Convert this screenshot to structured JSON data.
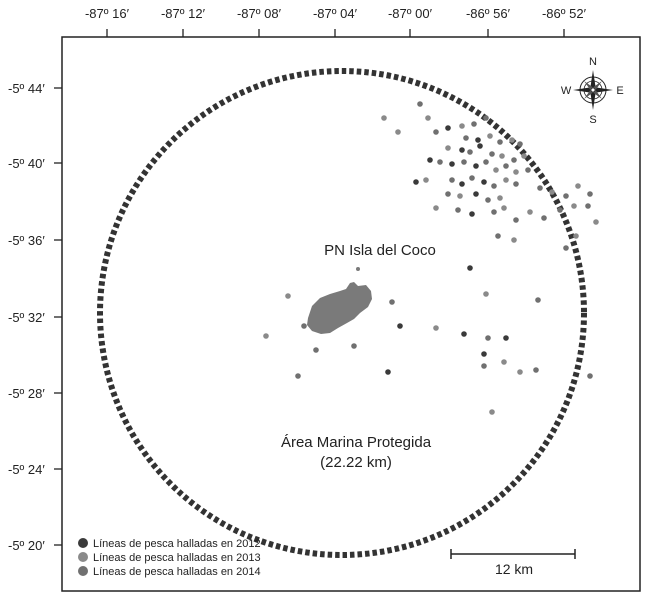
{
  "map": {
    "lon_labels": [
      "-87º 16′",
      "-87º 12′",
      "-87º 08′",
      "-87º 04′",
      "-87º 00′",
      "-86º 56′",
      "-86º 52′"
    ],
    "lat_labels": [
      "-5º 44′",
      "-5º 40′",
      "-5º 36′",
      "-5º 32′",
      "-5º 28′",
      "-5º 24′",
      "-5º 20′"
    ],
    "island_label": "PN Isla del Coco",
    "area_label_line1": "Área Marina Protegida",
    "area_label_line2": "(22.22 km)",
    "scale_label": "12 km",
    "compass": {
      "north": "N",
      "south": "S",
      "east": "E",
      "west": "W"
    },
    "legend": [
      {
        "label": "Líneas de pesca halladas en 2012",
        "color": "#3a3a3a"
      },
      {
        "label": "Líneas de pesca halladas en 2013",
        "color": "#8a8a8a"
      },
      {
        "label": "Líneas de pesca halladas en 2014",
        "color": "#707070"
      }
    ]
  }
}
